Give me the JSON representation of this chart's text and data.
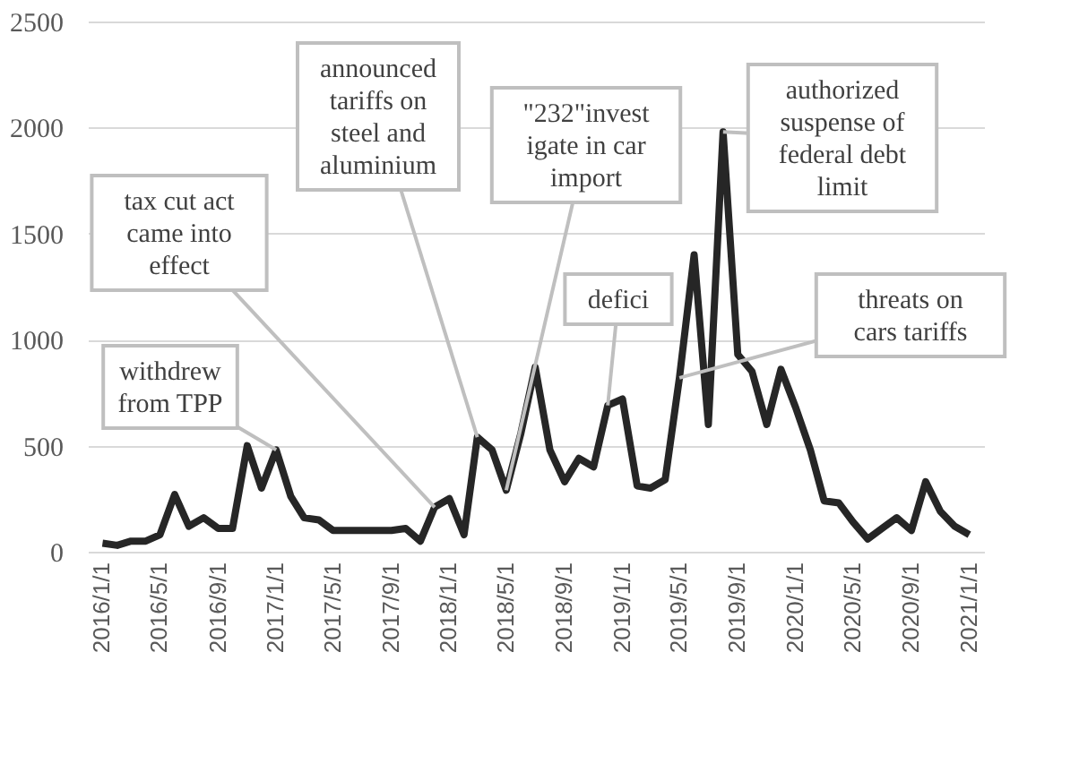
{
  "chart_data": {
    "type": "line",
    "x": [
      "2016-01-01",
      "2016-02-01",
      "2016-03-01",
      "2016-04-01",
      "2016-05-01",
      "2016-06-01",
      "2016-07-01",
      "2016-08-01",
      "2016-09-01",
      "2016-10-01",
      "2016-11-01",
      "2016-12-01",
      "2017-01-01",
      "2017-02-01",
      "2017-03-01",
      "2017-04-01",
      "2017-05-01",
      "2017-06-01",
      "2017-07-01",
      "2017-08-01",
      "2017-09-01",
      "2017-10-01",
      "2017-11-01",
      "2017-12-01",
      "2018-01-01",
      "2018-02-01",
      "2018-03-01",
      "2018-04-01",
      "2018-05-01",
      "2018-06-01",
      "2018-07-01",
      "2018-08-01",
      "2018-09-01",
      "2018-10-01",
      "2018-11-01",
      "2018-12-01",
      "2019-01-01",
      "2019-02-01",
      "2019-03-01",
      "2019-04-01",
      "2019-05-01",
      "2019-06-01",
      "2019-07-01",
      "2019-08-01",
      "2019-09-01",
      "2019-10-01",
      "2019-11-01",
      "2019-12-01",
      "2020-01-01",
      "2020-02-01",
      "2020-03-01",
      "2020-04-01",
      "2020-05-01",
      "2020-06-01",
      "2020-07-01",
      "2020-08-01",
      "2020-09-01",
      "2020-10-01",
      "2020-11-01",
      "2020-12-01",
      "2021-01-01"
    ],
    "series": [
      {
        "color": "#262626",
        "values": [
          40,
          30,
          50,
          50,
          80,
          270,
          120,
          160,
          110,
          110,
          500,
          300,
          480,
          260,
          160,
          150,
          100,
          100,
          100,
          100,
          100,
          110,
          50,
          210,
          250,
          80,
          540,
          480,
          290,
          560,
          870,
          480,
          330,
          440,
          400,
          690,
          720,
          310,
          300,
          340,
          820,
          1400,
          600,
          1980,
          930,
          850,
          600,
          860,
          680,
          480,
          240,
          230,
          140,
          60,
          110,
          160,
          100,
          330,
          190,
          120,
          80
        ]
      }
    ],
    "xlim": [
      "2015-12-01",
      "2021-02-01"
    ],
    "xticks": [
      {
        "value": "2016-01-01",
        "label": "2016/1/1"
      },
      {
        "value": "2016-05-01",
        "label": "2016/5/1"
      },
      {
        "value": "2016-09-01",
        "label": "2016/9/1"
      },
      {
        "value": "2017-01-01",
        "label": "2017/1/1"
      },
      {
        "value": "2017-05-01",
        "label": "2017/5/1"
      },
      {
        "value": "2017-09-01",
        "label": "2017/9/1"
      },
      {
        "value": "2018-01-01",
        "label": "2018/1/1"
      },
      {
        "value": "2018-05-01",
        "label": "2018/5/1"
      },
      {
        "value": "2018-09-01",
        "label": "2018/9/1"
      },
      {
        "value": "2019-01-01",
        "label": "2019/1/1"
      },
      {
        "value": "2019-05-01",
        "label": "2019/5/1"
      },
      {
        "value": "2019-09-01",
        "label": "2019/9/1"
      },
      {
        "value": "2020-01-01",
        "label": "2020/1/1"
      },
      {
        "value": "2020-05-01",
        "label": "2020/5/1"
      },
      {
        "value": "2020-09-01",
        "label": "2020/9/1"
      },
      {
        "value": "2021-01-01",
        "label": "2021/1/1"
      }
    ],
    "ylim": [
      0,
      2500
    ],
    "yticks": [
      0,
      500,
      1000,
      1500,
      2000,
      2500
    ],
    "grid": "y",
    "marker": "none",
    "line_style": "solid",
    "annotations": [
      {
        "text": "withdrew\nfrom TPP",
        "x": "2017-01-01",
        "y": 480
      },
      {
        "text": "tax cut act\ncame into\neffect",
        "x": "2017-12-01",
        "y": 210
      },
      {
        "text": "announced\ntariffs on\nsteel and\naluminium",
        "x": "2018-03-01",
        "y": 540
      },
      {
        "text": "\"232\"invest\nigate in car\nimport",
        "x": "2018-05-01",
        "y": 290
      },
      {
        "text": "defici",
        "x": "2018-12-01",
        "y": 690
      },
      {
        "text": "authorized\nsuspense of\nfederal debt\nlimit",
        "x": "2019-08-01",
        "y": 1980
      },
      {
        "text": "threats on\ncars tariffs",
        "x": "2019-05-01",
        "y": 820
      }
    ]
  }
}
